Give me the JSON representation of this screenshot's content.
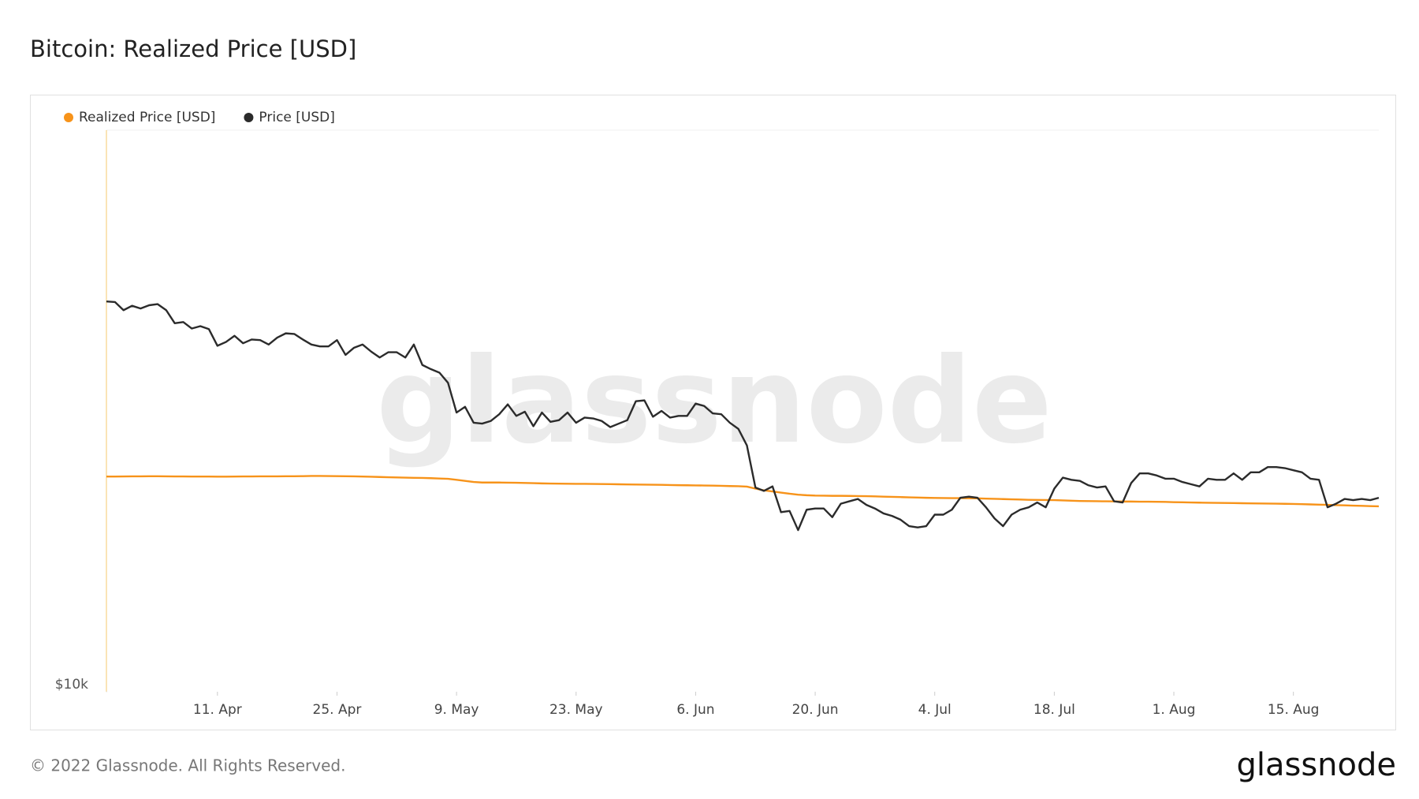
{
  "chart_data": {
    "type": "line",
    "title": "Bitcoin: Realized Price [USD]",
    "x": [
      "29. Mar",
      "30. Mar",
      "31. Mar",
      "1. Apr",
      "2. Apr",
      "3. Apr",
      "4. Apr",
      "5. Apr",
      "6. Apr",
      "7. Apr",
      "8. Apr",
      "9. Apr",
      "10. Apr",
      "11. Apr",
      "12. Apr",
      "13. Apr",
      "14. Apr",
      "15. Apr",
      "16. Apr",
      "17. Apr",
      "18. Apr",
      "19. Apr",
      "20. Apr",
      "21. Apr",
      "22. Apr",
      "23. Apr",
      "24. Apr",
      "25. Apr",
      "26. Apr",
      "27. Apr",
      "28. Apr",
      "29. Apr",
      "30. Apr",
      "1. May",
      "2. May",
      "3. May",
      "4. May",
      "5. May",
      "6. May",
      "7. May",
      "8. May",
      "9. May",
      "10. May",
      "11. May",
      "12. May",
      "13. May",
      "14. May",
      "15. May",
      "16. May",
      "17. May",
      "18. May",
      "19. May",
      "20. May",
      "21. May",
      "22. May",
      "23. May",
      "24. May",
      "25. May",
      "26. May",
      "27. May",
      "28. May",
      "29. May",
      "30. May",
      "31. May",
      "1. Jun",
      "2. Jun",
      "3. Jun",
      "4. Jun",
      "5. Jun",
      "6. Jun",
      "7. Jun",
      "8. Jun",
      "9. Jun",
      "10. Jun",
      "11. Jun",
      "12. Jun",
      "13. Jun",
      "14. Jun",
      "15. Jun",
      "16. Jun",
      "17. Jun",
      "18. Jun",
      "19. Jun",
      "20. Jun",
      "21. Jun",
      "22. Jun",
      "23. Jun",
      "24. Jun",
      "25. Jun",
      "26. Jun",
      "27. Jun",
      "28. Jun",
      "29. Jun",
      "30. Jun",
      "1. Jul",
      "2. Jul",
      "3. Jul",
      "4. Jul",
      "5. Jul",
      "6. Jul",
      "7. Jul",
      "8. Jul",
      "9. Jul",
      "10. Jul",
      "11. Jul",
      "12. Jul",
      "13. Jul",
      "14. Jul",
      "15. Jul",
      "16. Jul",
      "17. Jul",
      "18. Jul",
      "19. Jul",
      "20. Jul",
      "21. Jul",
      "22. Jul",
      "23. Jul",
      "24. Jul",
      "25. Jul",
      "26. Jul",
      "27. Jul",
      "28. Jul",
      "29. Jul",
      "30. Jul",
      "31. Jul",
      "1. Aug",
      "2. Aug",
      "3. Aug",
      "4. Aug",
      "5. Aug",
      "6. Aug",
      "7. Aug",
      "8. Aug",
      "9. Aug",
      "10. Aug",
      "11. Aug",
      "12. Aug",
      "13. Aug",
      "14. Aug",
      "15. Aug",
      "16. Aug",
      "17. Aug",
      "18. Aug",
      "19. Aug",
      "20. Aug",
      "21. Aug",
      "22. Aug",
      "23. Aug",
      "24. Aug",
      "25. Aug"
    ],
    "series": [
      {
        "name": "Realized Price [USD]",
        "color": "#f7931a",
        "values": [
          23500,
          23500,
          23510,
          23520,
          23520,
          23530,
          23530,
          23520,
          23510,
          23510,
          23500,
          23500,
          23500,
          23490,
          23490,
          23500,
          23510,
          23510,
          23520,
          23520,
          23520,
          23530,
          23530,
          23540,
          23560,
          23560,
          23550,
          23540,
          23530,
          23520,
          23500,
          23480,
          23460,
          23440,
          23420,
          23400,
          23380,
          23370,
          23350,
          23320,
          23290,
          23200,
          23100,
          23000,
          22950,
          22950,
          22950,
          22940,
          22930,
          22910,
          22890,
          22870,
          22860,
          22850,
          22840,
          22830,
          22830,
          22820,
          22810,
          22800,
          22790,
          22780,
          22770,
          22760,
          22750,
          22740,
          22720,
          22710,
          22700,
          22690,
          22680,
          22670,
          22650,
          22630,
          22620,
          22580,
          22400,
          22250,
          22150,
          22050,
          21950,
          21870,
          21820,
          21790,
          21780,
          21770,
          21770,
          21760,
          21750,
          21740,
          21720,
          21700,
          21680,
          21660,
          21640,
          21620,
          21600,
          21590,
          21580,
          21570,
          21570,
          21560,
          21550,
          21530,
          21510,
          21490,
          21470,
          21450,
          21430,
          21420,
          21410,
          21400,
          21380,
          21350,
          21330,
          21320,
          21310,
          21300,
          21290,
          21280,
          21280,
          21270,
          21270,
          21260,
          21250,
          21230,
          21220,
          21200,
          21190,
          21180,
          21170,
          21160,
          21150,
          21140,
          21130,
          21120,
          21110,
          21100,
          21090,
          21080,
          21060,
          21040,
          21020,
          21000,
          20980,
          20960,
          20940,
          20920,
          20900,
          20880
        ]
      },
      {
        "name": "Price [USD]",
        "color": "#2b2b2b",
        "values": [
          47100,
          47000,
          45500,
          46300,
          45800,
          46400,
          46600,
          45500,
          43200,
          43400,
          42300,
          42700,
          42200,
          39500,
          40100,
          41100,
          39900,
          40500,
          40400,
          39700,
          40800,
          41500,
          41400,
          40500,
          39700,
          39400,
          39400,
          40400,
          38100,
          39200,
          39700,
          38600,
          37700,
          38500,
          38500,
          37700,
          39700,
          36600,
          36000,
          35500,
          34100,
          30300,
          31000,
          29100,
          29000,
          29300,
          30100,
          31300,
          29900,
          30400,
          28700,
          30300,
          29200,
          29400,
          30300,
          29100,
          29700,
          29600,
          29300,
          28600,
          29000,
          29400,
          31700,
          31800,
          29800,
          30500,
          29700,
          29900,
          29900,
          31400,
          31100,
          30200,
          30100,
          29100,
          28400,
          26600,
          22500,
          22200,
          22600,
          20400,
          20500,
          19000,
          20600,
          20700,
          20700,
          20000,
          21100,
          21300,
          21500,
          21000,
          20700,
          20300,
          20100,
          19800,
          19300,
          19200,
          19300,
          20200,
          20200,
          20600,
          21600,
          21700,
          21600,
          20800,
          19900,
          19300,
          20200,
          20600,
          20800,
          21200,
          20800,
          22400,
          23400,
          23200,
          23100,
          22700,
          22500,
          22600,
          21300,
          21200,
          22900,
          23800,
          23800,
          23600,
          23300,
          23300,
          23000,
          22800,
          22600,
          23300,
          23200,
          23200,
          23800,
          23200,
          23900,
          23900,
          24400,
          24400,
          24300,
          24100,
          23900,
          23300,
          23200,
          20800,
          21100,
          21500,
          21400,
          21500,
          21400,
          21600
        ]
      }
    ],
    "xticks": [
      "11. Apr",
      "25. Apr",
      "9. May",
      "23. May",
      "6. Jun",
      "20. Jun",
      "4. Jul",
      "18. Jul",
      "1. Aug",
      "15. Aug"
    ],
    "ylim": [
      10000,
      93000
    ],
    "yticks": [
      {
        "value": 10000,
        "label": "$10k"
      }
    ],
    "log_scale": true,
    "legend": "top-left"
  },
  "watermark": "glassnode",
  "footer": {
    "copyright": "© 2022 Glassnode. All Rights Reserved.",
    "logo": "glassnode"
  }
}
